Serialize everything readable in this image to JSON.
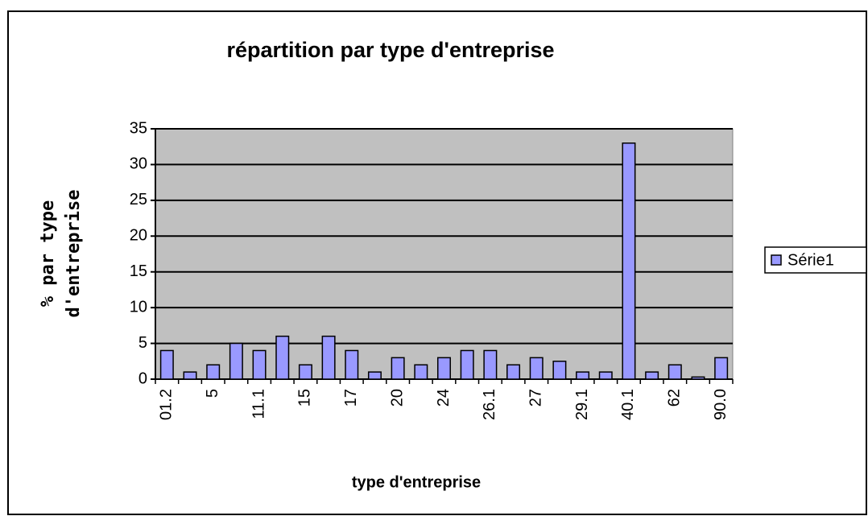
{
  "chart_data": {
    "type": "bar",
    "title": "répartition par type d'entreprise",
    "x_label": "type d'entreprise",
    "y_label": [
      "% par type",
      "d'entreprise"
    ],
    "categories": [
      "01.2",
      null,
      "5",
      null,
      "11.1",
      null,
      "15",
      null,
      "17",
      null,
      "20",
      null,
      "24",
      null,
      "26.1",
      null,
      "27",
      null,
      "29.1",
      null,
      "40.1",
      null,
      "62",
      null,
      "90.0"
    ],
    "series": [
      {
        "name": "Série1",
        "color": "#9999ff",
        "values": [
          4,
          1,
          2,
          5,
          4,
          6,
          2,
          6,
          4,
          1,
          3,
          2,
          3,
          4,
          4,
          2,
          3,
          2.5,
          1,
          1,
          33,
          1,
          2,
          0.3,
          3
        ]
      }
    ],
    "ylim": [
      0,
      35
    ],
    "yticks": [
      0,
      5,
      10,
      15,
      20,
      25,
      30,
      35
    ],
    "grid": true,
    "legend": "right"
  }
}
